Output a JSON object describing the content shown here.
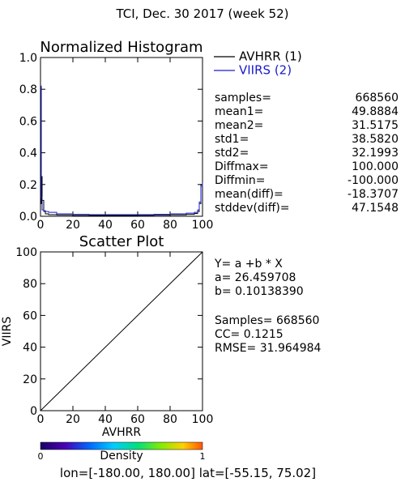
{
  "page_title": "TCI,  Dec. 30 2017 (week 52)",
  "colors": {
    "avhrr": "#000000",
    "viirs": "#1a1acc",
    "axis": "#000000",
    "text_stats": "#000000",
    "text_legend_viirs": "#1a1acc"
  },
  "chart_data": [
    {
      "type": "line",
      "title": "Normalized Histogram",
      "xlabel": "",
      "ylabel": "",
      "xlim": [
        0,
        100
      ],
      "ylim": [
        0,
        1.0
      ],
      "x_ticks": [
        "0",
        "20",
        "40",
        "60",
        "80",
        "100"
      ],
      "y_ticks": [
        "0.0",
        "0.2",
        "0.4",
        "0.6",
        "0.8",
        "1.0"
      ],
      "grid": false,
      "legend_position": "top-right",
      "series": [
        {
          "name": "AVHRR (1)",
          "color": "#000000",
          "x": [
            0,
            0.5,
            1,
            2,
            3,
            5,
            10,
            20,
            30,
            40,
            50,
            60,
            70,
            80,
            90,
            95,
            97,
            98,
            99,
            100
          ],
          "y": [
            0.08,
            0.25,
            0.1,
            0.035,
            0.015,
            0.01,
            0.008,
            0.006,
            0.005,
            0.005,
            0.005,
            0.006,
            0.007,
            0.009,
            0.012,
            0.018,
            0.03,
            0.08,
            0.2,
            0.18
          ]
        },
        {
          "name": "VIIRS (2)",
          "color": "#1a1acc",
          "x": [
            0,
            0.5,
            1,
            2,
            3,
            5,
            10,
            20,
            30,
            40,
            50,
            60,
            70,
            80,
            90,
            95,
            97,
            98,
            99,
            100
          ],
          "y": [
            0.82,
            0.12,
            0.04,
            0.03,
            0.03,
            0.025,
            0.015,
            0.012,
            0.01,
            0.01,
            0.01,
            0.01,
            0.012,
            0.015,
            0.02,
            0.025,
            0.04,
            0.09,
            0.19,
            0.21
          ]
        }
      ]
    },
    {
      "type": "scatter",
      "title": "Scatter Plot",
      "xlabel": "AVHRR",
      "ylabel": "VIIRS",
      "xlim": [
        0,
        100
      ],
      "ylim": [
        0,
        100
      ],
      "x_ticks": [
        "0",
        "20",
        "40",
        "60",
        "80",
        "100"
      ],
      "y_ticks": [
        "0",
        "20",
        "40",
        "60",
        "80",
        "100"
      ],
      "grid": false,
      "reference_line": {
        "x": [
          0,
          100
        ],
        "y": [
          0,
          100
        ]
      },
      "colorbar": {
        "label": "Density",
        "min_label": "0",
        "max_label": "1"
      }
    }
  ],
  "stats": [
    {
      "label": "samples=",
      "value": "668560"
    },
    {
      "label": "mean1=",
      "value": "49.8884"
    },
    {
      "label": "mean2=",
      "value": "31.5175"
    },
    {
      "label": "std1=",
      "value": "38.5820"
    },
    {
      "label": "std2=",
      "value": "32.1993"
    },
    {
      "label": "Diffmax=",
      "value": "100.000"
    },
    {
      "label": "Diffmin=",
      "value": "-100.000"
    },
    {
      "label": "mean(diff)=",
      "value": "-18.3707"
    },
    {
      "label": "stddev(diff)=",
      "value": "47.1548"
    }
  ],
  "regression": {
    "equation": "Y= a +b * X",
    "a": "a= 26.459708",
    "b": "b= 0.10138390",
    "samples": "Samples= 668560",
    "cc": "CC=  0.1215",
    "rmse": "RMSE= 31.964984"
  },
  "footer": "lon=[-180.00, 180.00] lat=[-55.15, 75.02]"
}
